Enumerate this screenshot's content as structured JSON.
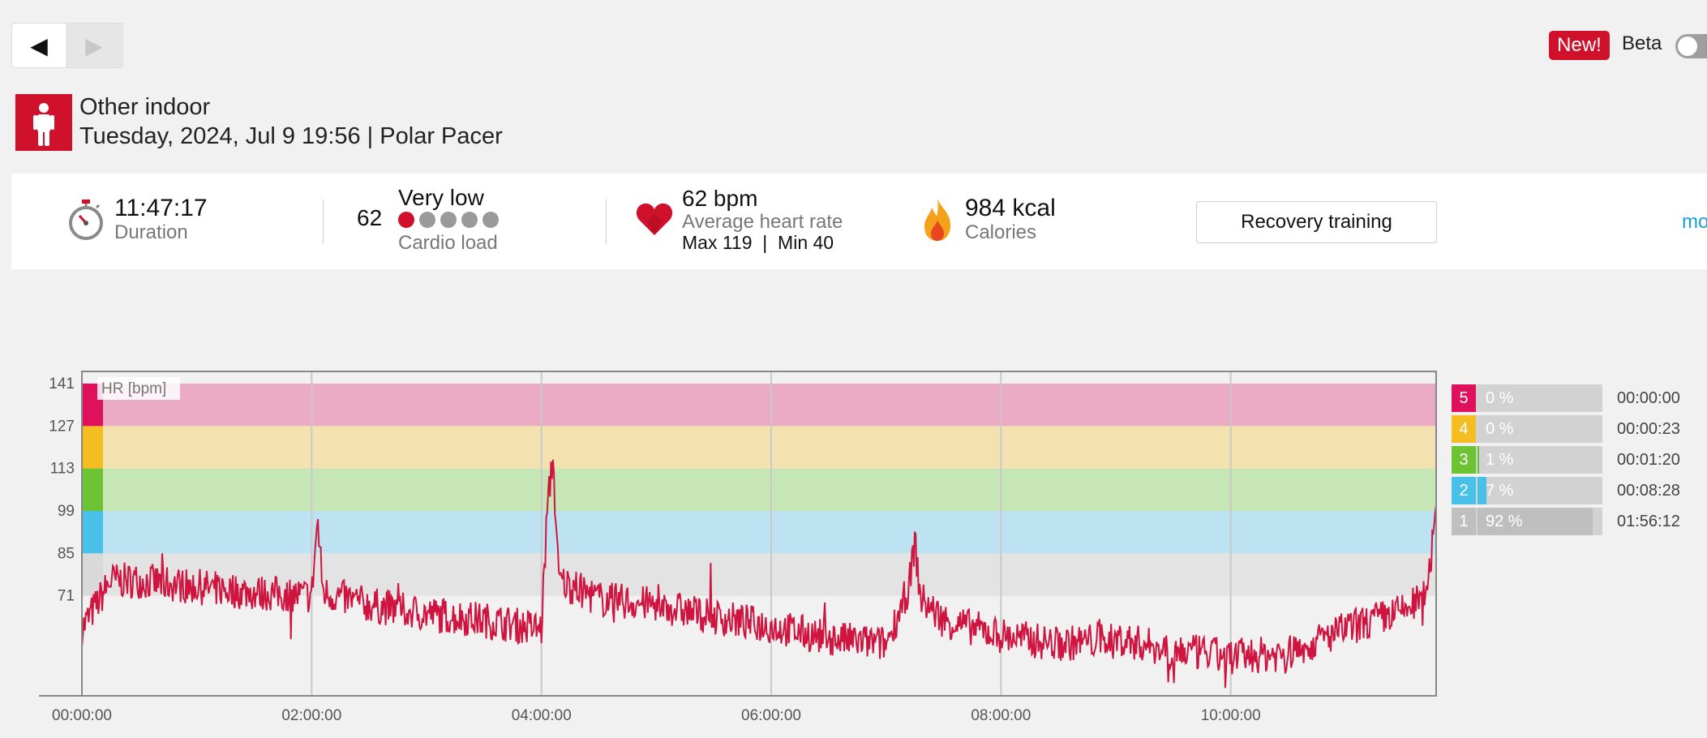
{
  "nav": {
    "prev_icon": "◀",
    "next_icon": "▶"
  },
  "header": {
    "new_badge": "New!",
    "beta_label": "Beta"
  },
  "activity": {
    "sport": "Other indoor",
    "date_device": "Tuesday, 2024, Jul 9 19:56 | Polar Pacer"
  },
  "summary": {
    "duration_value": "11:47:17",
    "duration_label": "Duration",
    "cardio_value": "62",
    "cardio_level": "Very low",
    "cardio_label": "Cardio load",
    "cardio_dots_filled": 1,
    "cardio_dots_total": 5,
    "hr_value": "62 bpm",
    "hr_label": "Average heart rate",
    "hr_maxmin": "Max 119  |  Min 40",
    "calories_value": "984 kcal",
    "calories_label": "Calories",
    "training_benefit": "Recovery training",
    "more_link": "mo"
  },
  "chart_data": {
    "type": "line",
    "series_label": "HR [bpm]",
    "y_ticks": [
      "141",
      "127",
      "113",
      "99",
      "85",
      "71"
    ],
    "x_ticks": [
      "00:00:00",
      "02:00:00",
      "04:00:00",
      "06:00:00",
      "08:00:00",
      "10:00:00"
    ],
    "x_range_seconds": [
      0,
      42437
    ],
    "y_range": [
      38,
      145
    ],
    "max": 119,
    "min": 40,
    "zone_colors": [
      "#d9d9d9",
      "#48c0e8",
      "#6cc334",
      "#f6bd23",
      "#e0115c"
    ],
    "zone_band_colors": [
      "#e3e3e3",
      "#bde2f1",
      "#c7e6b6",
      "#f4e1b0",
      "#ebabc4"
    ],
    "hr_keypoints": [
      [
        0,
        60
      ],
      [
        900,
        76
      ],
      [
        1800,
        76
      ],
      [
        3600,
        74
      ],
      [
        5400,
        72
      ],
      [
        7200,
        71
      ],
      [
        7380,
        96
      ],
      [
        7560,
        72
      ],
      [
        9000,
        68
      ],
      [
        10800,
        65
      ],
      [
        12600,
        63
      ],
      [
        14400,
        60
      ],
      [
        14580,
        99
      ],
      [
        14760,
        117
      ],
      [
        14940,
        76
      ],
      [
        16200,
        70
      ],
      [
        18000,
        68
      ],
      [
        19800,
        64
      ],
      [
        21600,
        61
      ],
      [
        23400,
        57
      ],
      [
        25200,
        55
      ],
      [
        25920,
        74
      ],
      [
        26100,
        89
      ],
      [
        26280,
        70
      ],
      [
        27000,
        63
      ],
      [
        28800,
        58
      ],
      [
        30600,
        55
      ],
      [
        32400,
        57
      ],
      [
        34200,
        53
      ],
      [
        36000,
        51
      ],
      [
        37800,
        52
      ],
      [
        39600,
        60
      ],
      [
        41400,
        66
      ],
      [
        42000,
        70
      ],
      [
        42300,
        85
      ],
      [
        42437,
        96
      ]
    ]
  },
  "zones": [
    {
      "zone": "5",
      "percent": "0 %",
      "fraction": 0.0,
      "time": "00:00:00",
      "color": "#e0115c"
    },
    {
      "zone": "4",
      "percent": "0 %",
      "fraction": 0.0,
      "time": "00:00:23",
      "color": "#f6bd23"
    },
    {
      "zone": "3",
      "percent": "1 %",
      "fraction": 0.01,
      "time": "00:01:20",
      "color": "#6cc334"
    },
    {
      "zone": "2",
      "percent": "7 %",
      "fraction": 0.07,
      "time": "00:08:28",
      "color": "#48c0e8"
    },
    {
      "zone": "1",
      "percent": "92 %",
      "fraction": 0.92,
      "time": "01:56:12",
      "color": "#bfbfbf"
    }
  ]
}
